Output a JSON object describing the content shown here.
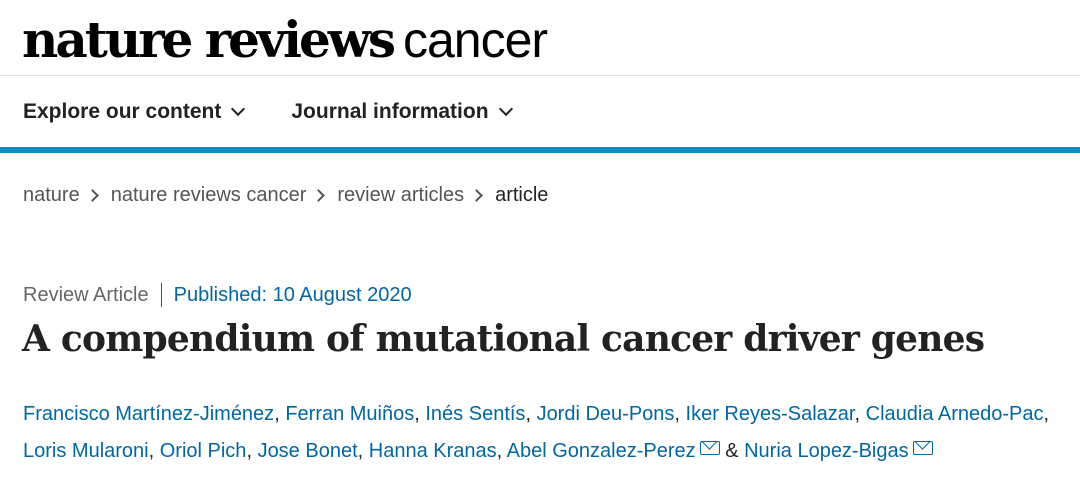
{
  "brand": {
    "bold": "nature reviews",
    "light": "cancer"
  },
  "nav": [
    {
      "label": "Explore our content"
    },
    {
      "label": "Journal information"
    }
  ],
  "breadcrumb": [
    "nature",
    "nature reviews cancer",
    "review articles",
    "article"
  ],
  "article": {
    "type": "Review Article",
    "published": "Published: 10 August 2020",
    "title": "A compendium of mutational cancer driver genes",
    "authors": [
      "Francisco Martínez-Jiménez",
      "Ferran Muiños",
      "Inés Sentís",
      "Jordi Deu-Pons",
      "Iker Reyes-Salazar",
      "Claudia Arnedo-Pac",
      "Loris Mularoni",
      "Oriol Pich",
      "Jose Bonet",
      "Hanna Kranas",
      "Abel Gonzalez-Perez",
      "Nuria Lopez-Bigas"
    ],
    "separator": ", ",
    "and": " & "
  },
  "colors": {
    "accent": "#0093bd",
    "link": "#0067a5"
  }
}
